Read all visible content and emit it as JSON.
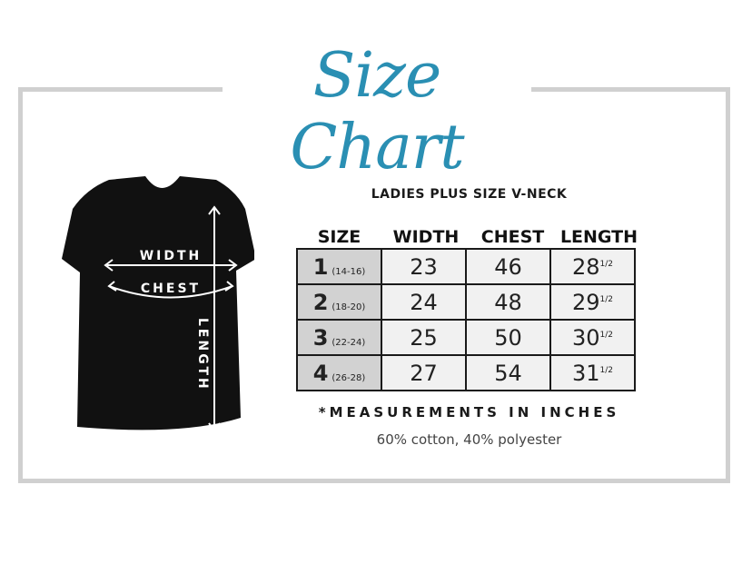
{
  "title": "Size Chart",
  "colors": {
    "title": "#2a8fb3",
    "frame": "#d0d0d0",
    "size_cell": "#d2d2d2",
    "cell": "#f1f1f1"
  },
  "shirt_labels": {
    "width": "WIDTH",
    "chest": "CHEST",
    "length": "LENGTH"
  },
  "subtitle": "LADIES PLUS SIZE V-NECK",
  "headers": [
    "SIZE",
    "WIDTH",
    "CHEST",
    "LENGTH"
  ],
  "rows": [
    {
      "size": "1",
      "range": "(14-16)",
      "width": "23",
      "chest": "46",
      "length": "28",
      "frac": "1/2"
    },
    {
      "size": "2",
      "range": "(18-20)",
      "width": "24",
      "chest": "48",
      "length": "29",
      "frac": "1/2"
    },
    {
      "size": "3",
      "range": "(22-24)",
      "width": "25",
      "chest": "50",
      "length": "30",
      "frac": "1/2"
    },
    {
      "size": "4",
      "range": "(26-28)",
      "width": "27",
      "chest": "54",
      "length": "31",
      "frac": "1/2"
    }
  ],
  "note": "*MEASUREMENTS IN INCHES",
  "fabric": "60% cotton, 40% polyester"
}
